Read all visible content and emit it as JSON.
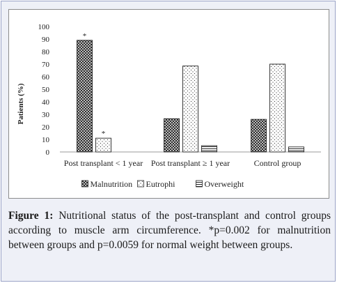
{
  "chart_data": {
    "type": "bar",
    "title": "",
    "xlabel": "",
    "ylabel": "Patients (%)",
    "ylim": [
      0,
      100
    ],
    "yticks": [
      0,
      10,
      20,
      30,
      40,
      50,
      60,
      70,
      80,
      90,
      100
    ],
    "grid": false,
    "legend_position": "bottom",
    "categories": [
      "Post transplant < 1 year",
      "Post transplant ≥ 1 year",
      "Control group"
    ],
    "series": [
      {
        "name": "Malnutrition",
        "pattern": "crosshatch",
        "values": [
          89,
          26.5,
          26
        ],
        "annotations": [
          "*",
          "",
          ""
        ]
      },
      {
        "name": "Eutrophi",
        "pattern": "dots",
        "values": [
          11,
          68.5,
          70
        ],
        "annotations": [
          "*",
          "",
          ""
        ]
      },
      {
        "name": "Overweight",
        "pattern": "horizontal-lines",
        "values": [
          0,
          5,
          4
        ],
        "annotations": [
          "",
          "",
          ""
        ]
      }
    ]
  },
  "caption": {
    "label": "Figure 1:",
    "text": " Nutritional status of the post-transplant and control groups according to muscle arm circumference. *p=0.002 for malnutrition between groups and p=0.0059 for normal weight between groups."
  }
}
